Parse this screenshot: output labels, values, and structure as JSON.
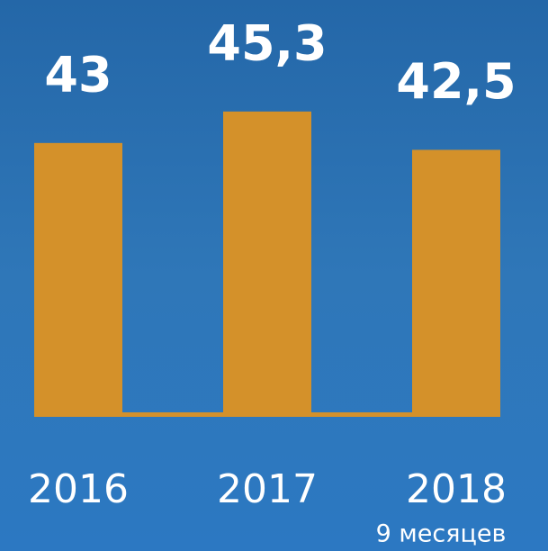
{
  "chart_data": {
    "type": "bar",
    "categories": [
      "2016",
      "2017",
      "2018"
    ],
    "values": [
      43,
      45.3,
      42.5
    ],
    "value_labels": [
      "43",
      "45,3",
      "42,5"
    ],
    "annotations": [
      "9 месяцев"
    ],
    "color": "#d4912a",
    "ylim": [
      23,
      47
    ]
  }
}
